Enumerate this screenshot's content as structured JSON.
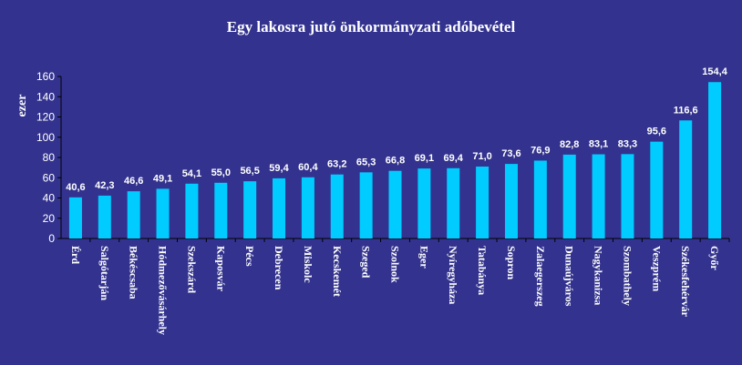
{
  "chart_data": {
    "type": "bar",
    "title": "Egy lakosra jutó önkormányzati adóbevétel",
    "xlabel": "",
    "ylabel": "ezer",
    "ylim": [
      0,
      160
    ],
    "yticks": [
      0,
      20,
      40,
      60,
      80,
      100,
      120,
      140,
      160
    ],
    "grid": false,
    "legend": "none",
    "bar_color": "#00ccff",
    "categories": [
      "Érd",
      "Salgótarján",
      "Békéscsaba",
      "Hódmezővásárhely",
      "Szekszárd",
      "Kaposvár",
      "Pécs",
      "Debrecen",
      "Miskolc",
      "Kecskemét",
      "Szeged",
      "Szolnok",
      "Eger",
      "Nyíregyháza",
      "Tatabánya",
      "Sopron",
      "Zalaegerszeg",
      "Dunaújváros",
      "Nagykanizsa",
      "Szombathely",
      "Veszprém",
      "Székesfehérvár",
      "Győr"
    ],
    "values": [
      40.6,
      42.3,
      46.6,
      49.1,
      54.1,
      55.0,
      56.5,
      59.4,
      60.4,
      63.2,
      65.3,
      66.8,
      69.1,
      69.4,
      71.0,
      73.6,
      76.9,
      82.8,
      83.1,
      83.3,
      95.6,
      116.6,
      154.4
    ],
    "value_labels": [
      "40,6",
      "42,3",
      "46,6",
      "49,1",
      "54,1",
      "55,0",
      "56,5",
      "59,4",
      "60,4",
      "63,2",
      "65,3",
      "66,8",
      "69,1",
      "69,4",
      "71,0",
      "73,6",
      "76,9",
      "82,8",
      "83,1",
      "83,3",
      "95,6",
      "116,6",
      "154,4"
    ]
  }
}
